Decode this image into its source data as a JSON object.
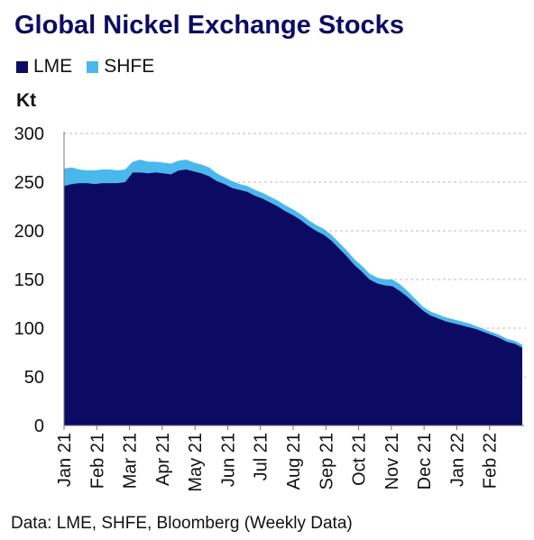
{
  "chart_data": {
    "type": "area",
    "stacked": true,
    "title": "Global Nickel Exchange Stocks",
    "ylabel": "Kt",
    "source": "Data: LME, SHFE, Bloomberg (Weekly Data)",
    "ylim": [
      0,
      300
    ],
    "yticks": [
      0,
      50,
      100,
      150,
      200,
      250,
      300
    ],
    "grid": "horizontal-dashed",
    "legend_position": "top-left",
    "x_tick_labels": [
      "Jan 21",
      "Feb 21",
      "Mar 21",
      "Apr 21",
      "May 21",
      "Jun 21",
      "Jul 21",
      "Aug 21",
      "Sep 21",
      "Oct 21",
      "Nov 21",
      "Dec 21",
      "Jan 22",
      "Feb 22"
    ],
    "colors": {
      "LME": "#0b0b63",
      "SHFE": "#4ab8ec"
    },
    "series": [
      {
        "name": "LME",
        "values": [
          246,
          248,
          249,
          249,
          248,
          249,
          249,
          249,
          250,
          260,
          260,
          259,
          260,
          259,
          258,
          262,
          263,
          261,
          259,
          256,
          251,
          248,
          244,
          242,
          240,
          236,
          233,
          229,
          225,
          220,
          216,
          211,
          205,
          200,
          196,
          190,
          182,
          174,
          165,
          158,
          150,
          146,
          144,
          143,
          138,
          132,
          125,
          118,
          113,
          110,
          107,
          105,
          103,
          101,
          99,
          96,
          93,
          90,
          86,
          84,
          80
        ]
      },
      {
        "name": "SHFE",
        "values": [
          18,
          17,
          14,
          13,
          14,
          14,
          14,
          13,
          13,
          11,
          13,
          12,
          11,
          11,
          11,
          10,
          10,
          9,
          9,
          9,
          8,
          7,
          7,
          6,
          6,
          6,
          6,
          6,
          6,
          6,
          6,
          6,
          6,
          6,
          6,
          6,
          6,
          6,
          6,
          6,
          6,
          6,
          6,
          7,
          7,
          6,
          5,
          4,
          4,
          4,
          4,
          4,
          4,
          4,
          3,
          3,
          3,
          3,
          3,
          3,
          3
        ]
      }
    ]
  }
}
